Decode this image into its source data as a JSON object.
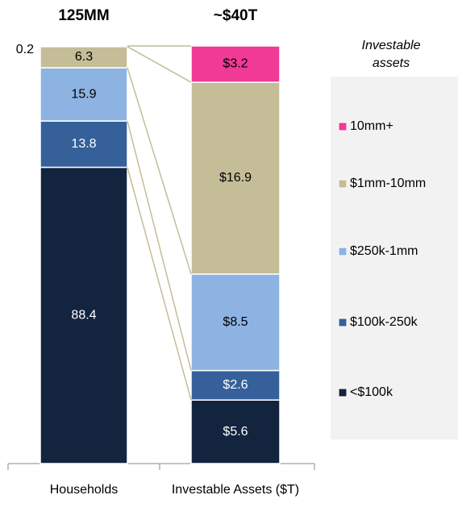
{
  "chart_data": {
    "type": "stacked_bar",
    "categories": [
      "Households",
      "Investable Assets ($T)"
    ],
    "totals": [
      "125MM",
      "~$40T"
    ],
    "legend_title": "Investable assets",
    "legend": "right",
    "series": [
      {
        "name": "<$100k",
        "color": "#13243f",
        "values": [
          88.4,
          5.6
        ],
        "value_labels": [
          "88.4",
          "$5.6"
        ]
      },
      {
        "name": "$100k-250k",
        "color": "#35609a",
        "values": [
          13.8,
          2.6
        ],
        "value_labels": [
          "13.8",
          "$2.6"
        ]
      },
      {
        "name": "$250k-1mm",
        "color": "#8db3e2",
        "values": [
          15.9,
          8.5
        ],
        "value_labels": [
          "15.9",
          "$8.5"
        ]
      },
      {
        "name": "$1mm-10mm",
        "color": "#c4bd97",
        "values": [
          6.3,
          16.9
        ],
        "value_labels": [
          "6.3",
          "$16.9"
        ]
      },
      {
        "name": "10mm+",
        "color": "#f03a95",
        "values": [
          0.2,
          3.2
        ],
        "value_labels": [
          "0.2",
          "$3.2"
        ]
      }
    ]
  }
}
